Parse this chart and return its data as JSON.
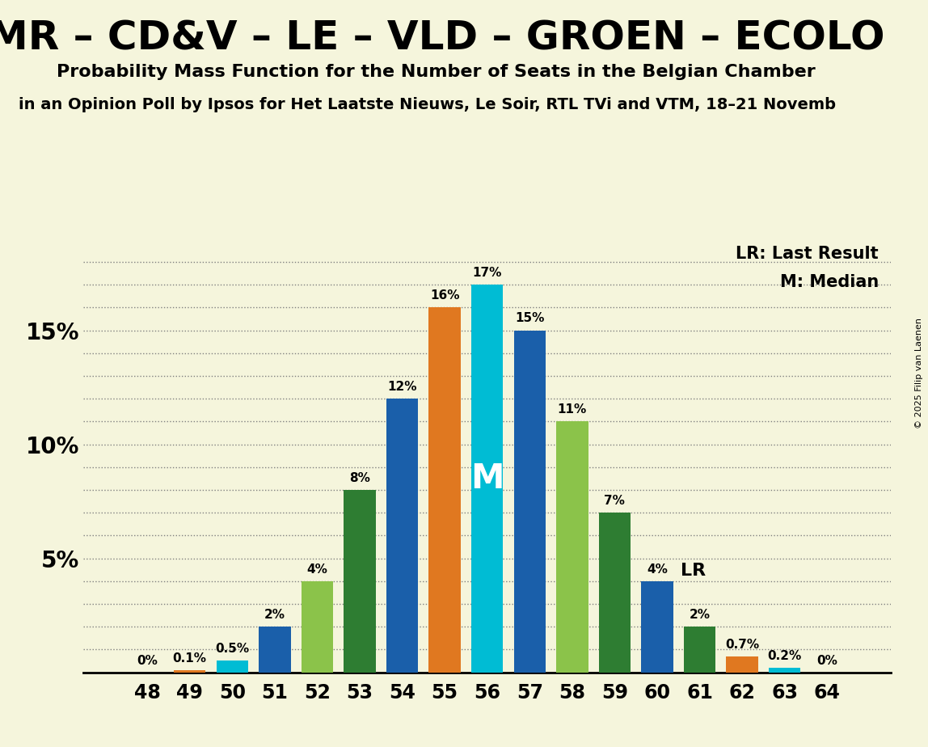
{
  "title": "MR – CD&V – LE – VLD – GROEN – ECOLO",
  "subtitle": "Probability Mass Function for the Number of Seats in the Belgian Chamber",
  "subtitle2": "in an Opinion Poll by Ipsos for Het Laatste Nieuws, Le Soir, RTL TVi and VTM, 18–21 Novemb",
  "copyright": "© 2025 Filip van Laenen",
  "seats": [
    48,
    49,
    50,
    51,
    52,
    53,
    54,
    55,
    56,
    57,
    58,
    59,
    60,
    61,
    62,
    63,
    64
  ],
  "probabilities": [
    0.0,
    0.1,
    0.5,
    2.0,
    4.0,
    8.0,
    12.0,
    16.0,
    17.0,
    15.0,
    11.0,
    7.0,
    4.0,
    2.0,
    0.7,
    0.2,
    0.0
  ],
  "bar_colors": [
    "#1a5faa",
    "#e07820",
    "#00bcd4",
    "#1a5faa",
    "#8bc34a",
    "#2e7d32",
    "#1a5faa",
    "#e07820",
    "#00bcd4",
    "#1a5faa",
    "#8bc34a",
    "#2e7d32",
    "#1a5faa",
    "#2e7d32",
    "#e07820",
    "#00bcd4",
    "#1a5faa"
  ],
  "median_seat": 56,
  "lr_seat": 60,
  "background_color": "#f5f5dc",
  "ylim": [
    0,
    19
  ],
  "yticks": [
    5,
    10,
    15
  ],
  "ytick_labels": [
    "5%",
    "10%",
    "15%"
  ]
}
